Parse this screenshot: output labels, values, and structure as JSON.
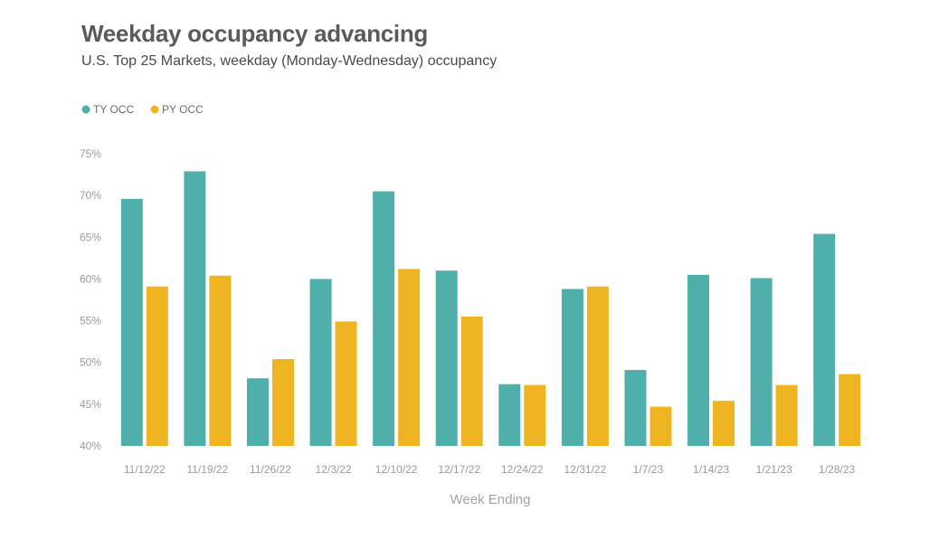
{
  "chart_data": {
    "type": "bar",
    "title": "Weekday occupancy advancing",
    "subtitle": "U.S. Top 25 Markets, weekday (Monday-Wednesday) occupancy",
    "xlabel": "Week Ending",
    "ylabel": "",
    "ylim": [
      40,
      75
    ],
    "yticks": [
      "40%",
      "45%",
      "50%",
      "55%",
      "60%",
      "65%",
      "70%",
      "75%"
    ],
    "ytick_values": [
      40,
      45,
      50,
      55,
      60,
      65,
      70,
      75
    ],
    "grid": false,
    "legend_position": "top-left",
    "categories": [
      "11/12/22",
      "11/19/22",
      "11/26/22",
      "12/3/22",
      "12/10/22",
      "12/17/22",
      "12/24/22",
      "12/31/22",
      "1/7/23",
      "1/14/23",
      "1/21/23",
      "1/28/23"
    ],
    "series": [
      {
        "name": "TY OCC",
        "color": "#4fafab",
        "values": [
          69.6,
          72.9,
          48.1,
          60.0,
          70.5,
          61.0,
          47.4,
          58.8,
          49.1,
          60.5,
          60.1,
          65.4
        ]
      },
      {
        "name": "PY OCC",
        "color": "#eeb422",
        "values": [
          59.1,
          60.4,
          50.4,
          54.9,
          61.2,
          55.5,
          47.3,
          59.1,
          44.7,
          45.4,
          47.3,
          48.6
        ]
      }
    ]
  }
}
